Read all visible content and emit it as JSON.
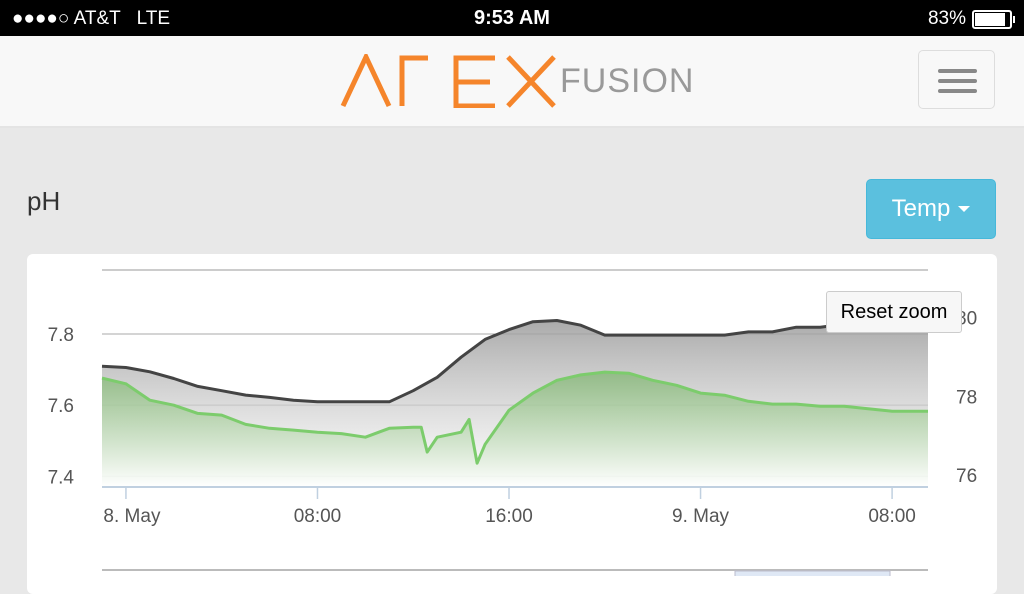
{
  "status_bar": {
    "signal": "●●●●○",
    "carrier": "AT&T",
    "network": "LTE",
    "time": "9:53 AM",
    "battery": "83%",
    "battery_level": 0.83
  },
  "header": {
    "logo_main": "APEX",
    "logo_sub": "FUSION",
    "menu_icon": "hamburger-icon"
  },
  "colors": {
    "accent_orange": "#f5852b",
    "button_blue": "#5bc0de",
    "temp_line": "#444444",
    "ph_line": "#7ccc6c"
  },
  "page": {
    "title": "pH",
    "selector_label": "Temp",
    "reset_zoom_label": "Reset zoom"
  },
  "chart_data": {
    "type": "area",
    "left_axis": {
      "ticks": [
        "7.4",
        "7.6",
        "7.8"
      ],
      "range": [
        7.37,
        7.98
      ]
    },
    "right_axis": {
      "ticks": [
        "76",
        "78",
        "80"
      ],
      "range": [
        75.7,
        81.2
      ]
    },
    "x_ticks": [
      "8. May",
      "08:00",
      "16:00",
      "9. May",
      "08:00"
    ],
    "x_range": [
      "May 7 23:00",
      "May 9 09:30"
    ],
    "grid": true,
    "series": [
      {
        "axis": "right",
        "color": "#444444",
        "x": [
          "May 7 23:00",
          "May 8 00:00",
          "May 8 01:00",
          "May 8 02:00",
          "May 8 03:00",
          "May 8 04:00",
          "May 8 05:00",
          "May 8 06:00",
          "May 8 07:00",
          "May 8 08:00",
          "May 8 09:00",
          "May 8 10:00",
          "May 8 11:00",
          "May 8 12:00",
          "May 8 13:00",
          "May 8 14:00",
          "May 8 15:00",
          "May 8 16:00",
          "May 8 17:00",
          "May 8 18:00",
          "May 8 19:00",
          "May 8 20:00",
          "May 8 21:00",
          "May 8 22:00",
          "May 8 23:00",
          "May 9 00:00",
          "May 9 01:00",
          "May 9 02:00",
          "May 9 03:00",
          "May 9 04:00",
          "May 9 05:00",
          "May 9 06:00",
          "May 9 07:00",
          "May 9 08:00",
          "May 9 09:00",
          "May 9 09:30"
        ],
        "y": [
          78.76,
          78.73,
          78.62,
          78.45,
          78.25,
          78.14,
          78.03,
          77.97,
          77.9,
          77.86,
          77.86,
          77.86,
          77.86,
          78.14,
          78.48,
          78.99,
          79.44,
          79.69,
          79.89,
          79.92,
          79.8,
          79.55,
          79.55,
          79.55,
          79.55,
          79.55,
          79.55,
          79.63,
          79.63,
          79.75,
          79.75,
          79.83,
          79.83,
          79.89,
          79.94,
          80.0
        ]
      },
      {
        "axis": "left",
        "color": "#7ccc6c",
        "x": [
          "May 7 23:00",
          "May 8 00:00",
          "May 8 01:00",
          "May 8 02:00",
          "May 8 03:00",
          "May 8 04:00",
          "May 8 05:00",
          "May 8 06:00",
          "May 8 07:00",
          "May 8 08:00",
          "May 8 09:00",
          "May 8 10:00",
          "May 8 11:00",
          "May 8 12:00",
          "May 8 12:20",
          "May 8 12:35",
          "May 8 13:00",
          "May 8 14:00",
          "May 8 14:20",
          "May 8 14:40",
          "May 8 15:00",
          "May 8 16:00",
          "May 8 17:00",
          "May 8 18:00",
          "May 8 19:00",
          "May 8 20:00",
          "May 8 21:00",
          "May 8 22:00",
          "May 8 23:00",
          "May 9 00:00",
          "May 9 01:00",
          "May 9 02:00",
          "May 9 03:00",
          "May 9 04:00",
          "May 9 05:00",
          "May 9 06:00",
          "May 9 07:00",
          "May 9 08:00",
          "May 9 09:00",
          "May 9 09:30"
        ],
        "y": [
          7.676,
          7.66,
          7.614,
          7.6,
          7.577,
          7.572,
          7.546,
          7.535,
          7.53,
          7.524,
          7.52,
          7.51,
          7.535,
          7.538,
          7.538,
          7.468,
          7.51,
          7.524,
          7.56,
          7.437,
          7.49,
          7.586,
          7.634,
          7.67,
          7.685,
          7.693,
          7.69,
          7.67,
          7.656,
          7.634,
          7.628,
          7.611,
          7.603,
          7.603,
          7.597,
          7.597,
          7.59,
          7.583,
          7.583,
          7.583
        ]
      }
    ]
  }
}
